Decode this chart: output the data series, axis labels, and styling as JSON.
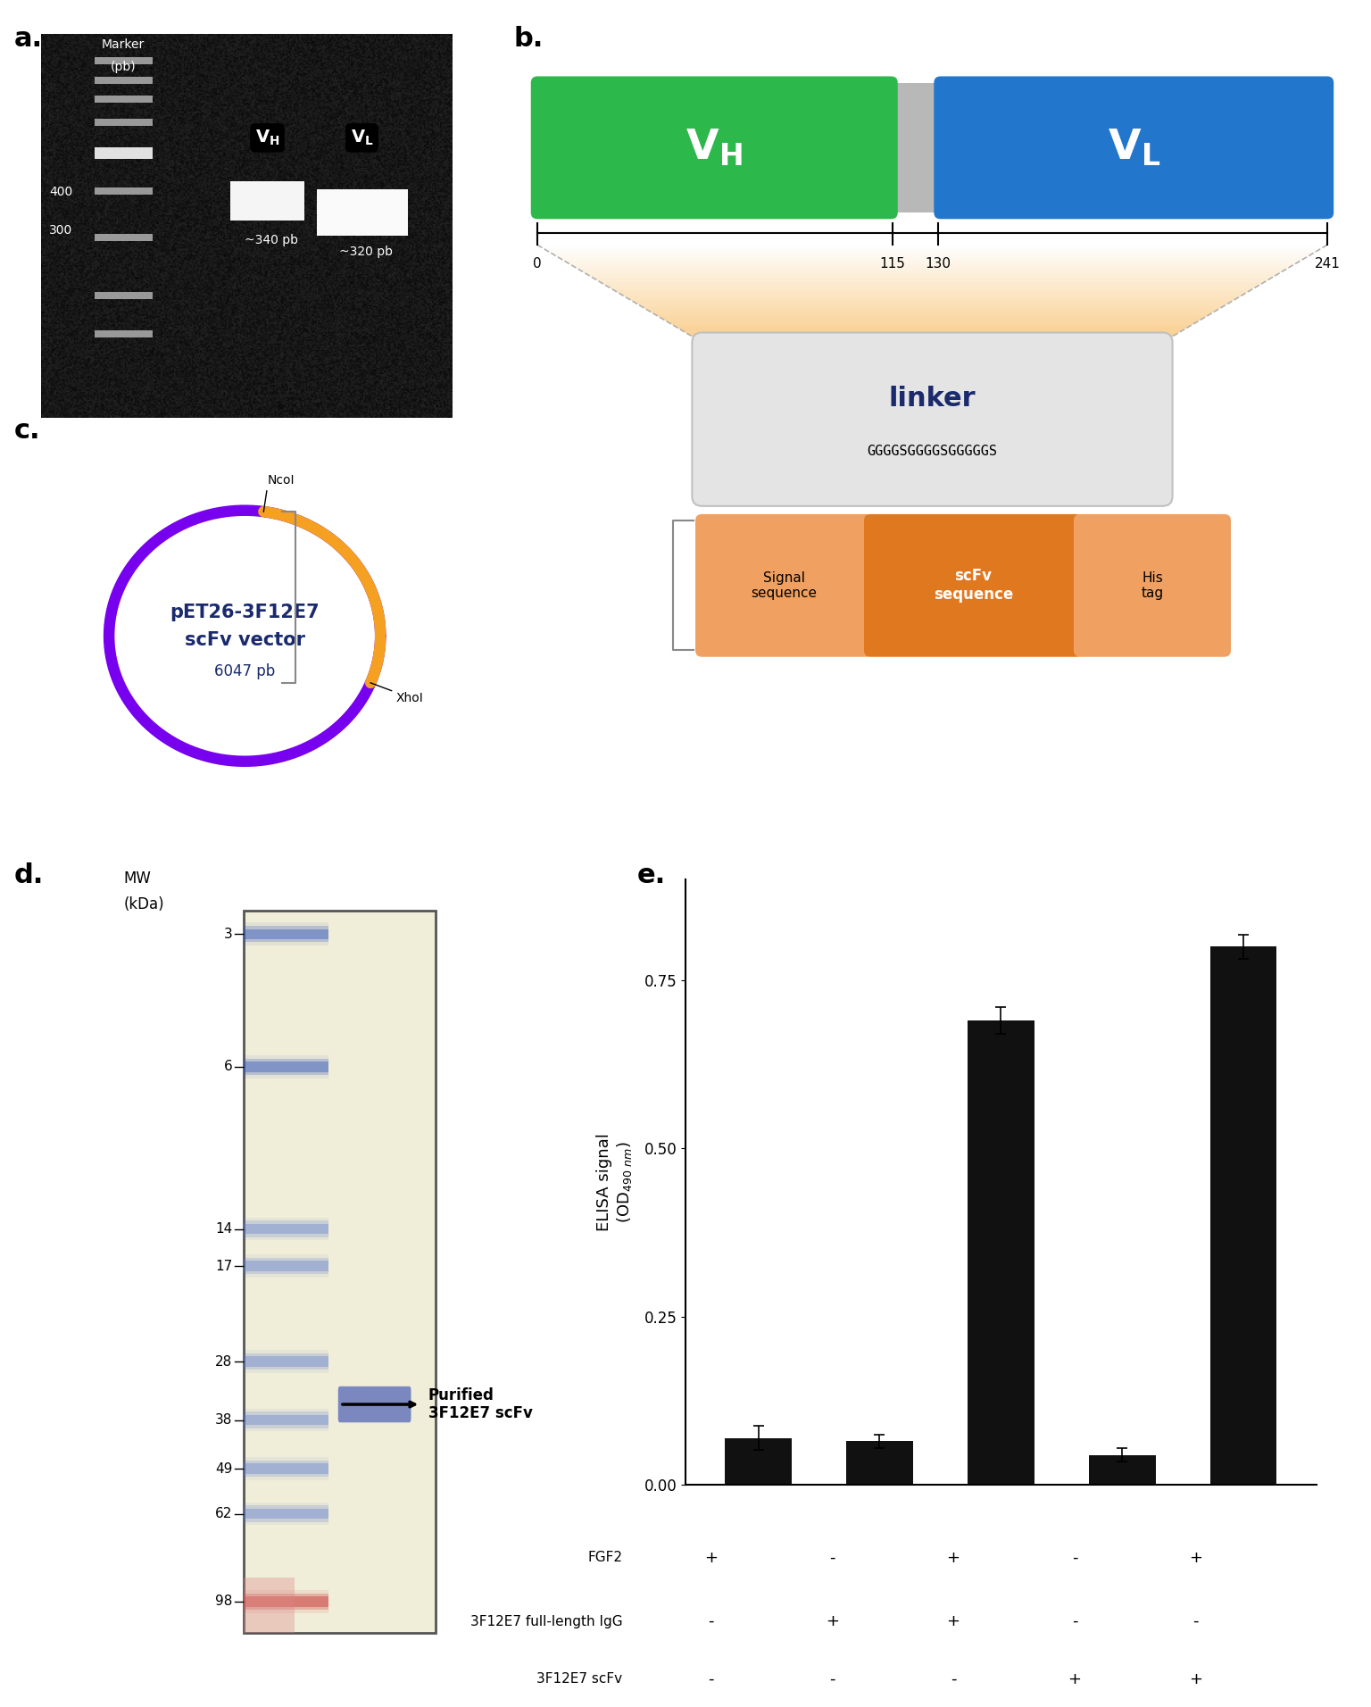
{
  "panel_labels": [
    "a.",
    "b.",
    "c.",
    "d.",
    "e."
  ],
  "vh_color": "#2db84b",
  "vl_color": "#2277cc",
  "linker_text": "GGGGSGGGGSGGGGGS",
  "plasmid_color": "#7700ee",
  "insert_color": "#f5a020",
  "plasmid_label1": "pET26-3F12E7",
  "plasmid_label2": "scFv vector",
  "plasmid_label3": "6047 pb",
  "plasmid_text_color": "#1a2a6c",
  "ncoi_label": "NcoI",
  "xhoi_label": "XhoI",
  "signal_seq_color": "#f0a060",
  "scfv_seq_color": "#e07820",
  "his_tag_color": "#f0a060",
  "bar_values": [
    0.07,
    0.065,
    0.69,
    0.045,
    0.8
  ],
  "bar_errors": [
    0.018,
    0.01,
    0.02,
    0.01,
    0.018
  ],
  "bar_color": "#111111",
  "elisa_ylim": [
    0,
    0.9
  ],
  "elisa_yticks": [
    0.0,
    0.25,
    0.5,
    0.75
  ],
  "elisa_conditions": [
    {
      "fgf2": "+",
      "full_igg": "-",
      "scfv": "-"
    },
    {
      "fgf2": "-",
      "full_igg": "+",
      "scfv": "-"
    },
    {
      "fgf2": "+",
      "full_igg": "+",
      "scfv": "-"
    },
    {
      "fgf2": "-",
      "full_igg": "-",
      "scfv": "+"
    },
    {
      "fgf2": "+",
      "full_igg": "-",
      "scfv": "+"
    }
  ],
  "mw_labels": [
    "98",
    "62",
    "49",
    "38",
    "28",
    "17",
    "14",
    "6",
    "3"
  ],
  "mw_values": [
    98,
    62,
    49,
    38,
    28,
    17,
    14,
    6,
    3
  ],
  "arrow_label": "Purified\n3F12E7 scFv",
  "gel_bg_color": "#f0edd8",
  "ladder_col_color": "#d0d8f0",
  "sample_band_color": "#8090c8",
  "top_band_color": "#cc4444"
}
